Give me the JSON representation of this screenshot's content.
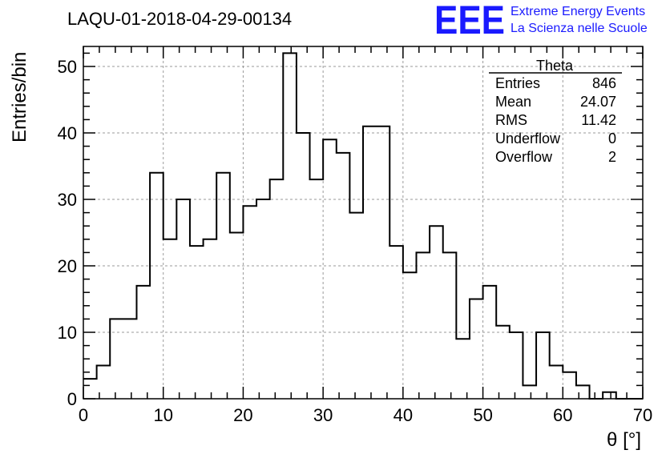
{
  "header": {
    "title": "LAQU-01-2018-04-29-00134",
    "logo_letters": "EEE",
    "logo_line1": "Extreme Energy Events",
    "logo_line2": "La Scienza nelle Scuole",
    "logo_color": "#1a1aff"
  },
  "stats": {
    "name": "Theta",
    "rows": [
      {
        "label": "Entries",
        "value": "846"
      },
      {
        "label": "Mean",
        "value": "24.07"
      },
      {
        "label": "RMS",
        "value": "11.42"
      },
      {
        "label": "Underflow",
        "value": "0"
      },
      {
        "label": "Overflow",
        "value": "2"
      }
    ]
  },
  "chart_data": {
    "type": "histogram",
    "title": "LAQU-01-2018-04-29-00134",
    "xlabel": "θ [°]",
    "ylabel": "Entries/bin",
    "xlim": [
      0,
      70
    ],
    "ylim": [
      0,
      55
    ],
    "bin_width": 1.6667,
    "grid": true,
    "x_ticks": [
      0,
      10,
      20,
      30,
      40,
      50,
      60,
      70
    ],
    "y_ticks": [
      0,
      10,
      20,
      30,
      40,
      50
    ],
    "values": [
      3,
      5,
      12,
      12,
      17,
      34,
      24,
      30,
      23,
      24,
      34,
      25,
      29,
      30,
      33,
      52,
      40,
      33,
      39,
      37,
      28,
      41,
      41,
      23,
      19,
      22,
      26,
      22,
      9,
      15,
      17,
      11,
      10,
      2,
      10,
      5,
      4,
      2,
      0,
      1,
      0,
      0
    ]
  }
}
